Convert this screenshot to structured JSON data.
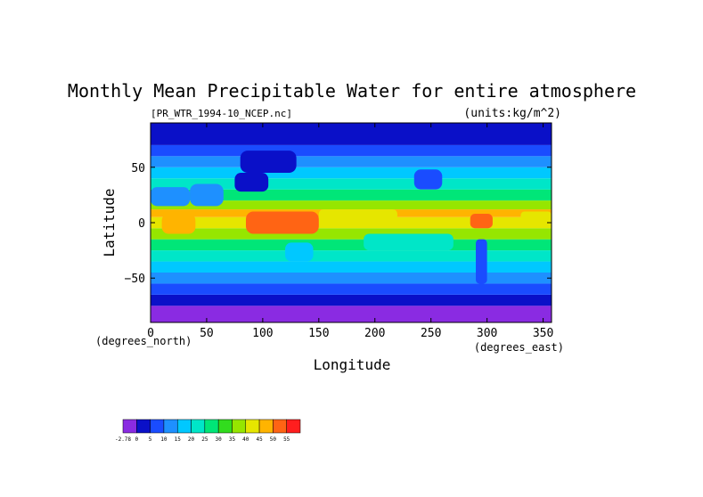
{
  "chart_data": {
    "type": "heatmap",
    "title": "Monthly Mean Precipitable Water for entire atmosphere",
    "file_label": "[PR_WTR_1994-10_NCEP.nc]",
    "units_label": "(units:kg/m^2)",
    "xlabel": "Longitude",
    "ylabel": "Latitude",
    "x_unit": "(degrees_east)",
    "y_unit": "(degrees_north)",
    "xlim": [
      0,
      357.5
    ],
    "ylim": [
      -90,
      90
    ],
    "x_ticks": [
      0,
      50,
      100,
      150,
      200,
      250,
      300,
      350
    ],
    "y_ticks": [
      50,
      0,
      -50
    ],
    "x_tick_labels": [
      "0",
      "50",
      "100",
      "150",
      "200",
      "250",
      "300",
      "350"
    ],
    "y_tick_labels": [
      "50",
      "0",
      "−50"
    ],
    "colorbar": {
      "labels": [
        "-2.78",
        "0",
        "5",
        "10",
        "15",
        "20",
        "25",
        "30",
        "35",
        "40",
        "45",
        "50",
        "55"
      ],
      "colors": [
        "#8a2be2",
        "#0a10c8",
        "#1a4cff",
        "#1e90ff",
        "#00c8ff",
        "#00e6c8",
        "#00e678",
        "#32dc1e",
        "#96e600",
        "#e6e600",
        "#ffb400",
        "#ff6414",
        "#ff1e1e"
      ]
    },
    "lat_bands": [
      {
        "lat": [
          -90,
          -75
        ],
        "value": -1
      },
      {
        "lat": [
          -75,
          -65
        ],
        "value": 2
      },
      {
        "lat": [
          -65,
          -55
        ],
        "value": 6
      },
      {
        "lat": [
          -55,
          -45
        ],
        "value": 11
      },
      {
        "lat": [
          -45,
          -35
        ],
        "value": 16
      },
      {
        "lat": [
          -35,
          -25
        ],
        "value": 21
      },
      {
        "lat": [
          -25,
          -15
        ],
        "value": 27
      },
      {
        "lat": [
          -15,
          -5
        ],
        "value": 37
      },
      {
        "lat": [
          -5,
          5
        ],
        "value": 43
      },
      {
        "lat": [
          5,
          12
        ],
        "value": 46
      },
      {
        "lat": [
          12,
          20
        ],
        "value": 37
      },
      {
        "lat": [
          20,
          30
        ],
        "value": 28
      },
      {
        "lat": [
          30,
          40
        ],
        "value": 21
      },
      {
        "lat": [
          40,
          50
        ],
        "value": 16
      },
      {
        "lat": [
          50,
          60
        ],
        "value": 11
      },
      {
        "lat": [
          60,
          70
        ],
        "value": 6
      },
      {
        "lat": [
          70,
          90
        ],
        "value": 3
      }
    ],
    "features": [
      {
        "lon": [
          10,
          40
        ],
        "lat": [
          -10,
          8
        ],
        "value": 48
      },
      {
        "lon": [
          85,
          150
        ],
        "lat": [
          -10,
          10
        ],
        "value": 52
      },
      {
        "lon": [
          285,
          305
        ],
        "lat": [
          -5,
          8
        ],
        "value": 52
      },
      {
        "lon": [
          150,
          220
        ],
        "lat": [
          0,
          12
        ],
        "value": 44
      },
      {
        "lon": [
          0,
          35
        ],
        "lat": [
          15,
          32
        ],
        "value": 14
      },
      {
        "lon": [
          35,
          65
        ],
        "lat": [
          15,
          35
        ],
        "value": 12
      },
      {
        "lon": [
          75,
          105
        ],
        "lat": [
          28,
          45
        ],
        "value": 3
      },
      {
        "lon": [
          80,
          130
        ],
        "lat": [
          45,
          65
        ],
        "value": 4
      },
      {
        "lon": [
          235,
          260
        ],
        "lat": [
          30,
          48
        ],
        "value": 6
      },
      {
        "lon": [
          290,
          300
        ],
        "lat": [
          -55,
          -15
        ],
        "value": 5
      },
      {
        "lon": [
          120,
          145
        ],
        "lat": [
          -35,
          -18
        ],
        "value": 18
      },
      {
        "lon": [
          190,
          270
        ],
        "lat": [
          -25,
          -10
        ],
        "value": 22
      },
      {
        "lon": [
          330,
          357.5
        ],
        "lat": [
          0,
          10
        ],
        "value": 44
      }
    ],
    "grid": false
  }
}
